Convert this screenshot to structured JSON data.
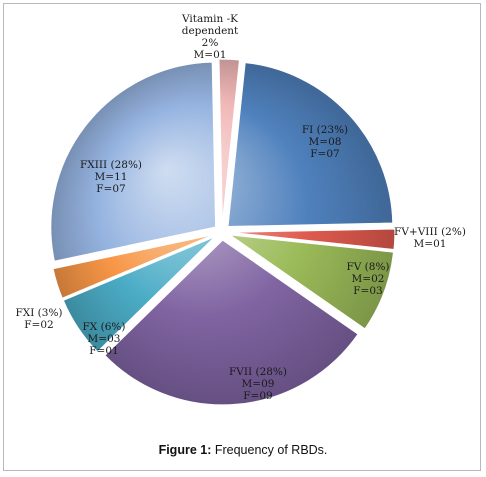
{
  "caption": {
    "label": "Figure 1:",
    "text": "Frequency of RBDs."
  },
  "chart_data": {
    "type": "pie",
    "exploded": true,
    "style": "3d-gradient",
    "slices": [
      {
        "name": "FI",
        "percent": 23,
        "label_lines": [
          "FI (23%)",
          "M=08",
          "F=07"
        ],
        "color": "#4f81bd"
      },
      {
        "name": "FV+VIII",
        "percent": 2,
        "label_lines": [
          "FV+VIII (2%)",
          "M=01"
        ],
        "color": "#e05a4e"
      },
      {
        "name": "FV",
        "percent": 8,
        "label_lines": [
          "FV (8%)",
          "M=02",
          "F=03"
        ],
        "color": "#9bbb59"
      },
      {
        "name": "FVII",
        "percent": 28,
        "label_lines": [
          "FVII (28%)",
          "M=09",
          "F=09"
        ],
        "color": "#8064a2"
      },
      {
        "name": "FX",
        "percent": 6,
        "label_lines": [
          "FX (6%)",
          "M=03",
          "F=01"
        ],
        "color": "#4bacc6"
      },
      {
        "name": "FXI",
        "percent": 3,
        "label_lines": [
          "FXI (3%)",
          "F=02"
        ],
        "color": "#f79646"
      },
      {
        "name": "FXIII",
        "percent": 28,
        "label_lines": [
          "FXIII (28%)",
          "M=11",
          "F=07"
        ],
        "color": "#95b3e0"
      },
      {
        "name": "Vitamin -K dependent",
        "percent": 2,
        "label_lines": [
          "Vitamin -K",
          "dependent",
          "2%",
          "M=01"
        ],
        "color": "#f2b8b8"
      }
    ]
  }
}
